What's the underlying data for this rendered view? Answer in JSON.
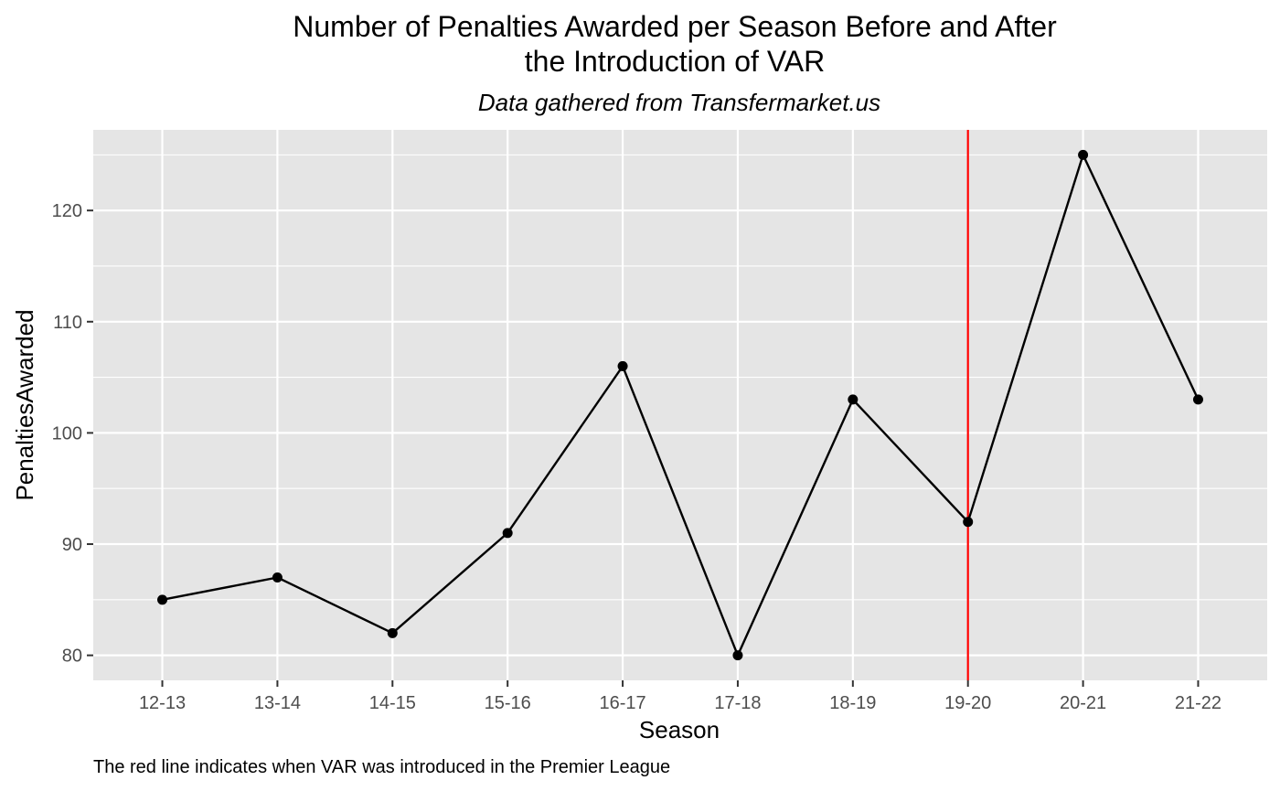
{
  "chart_data": {
    "type": "line",
    "title_line1": "Number of Penalties Awarded per Season Before and After",
    "title_line2": "the Introduction of VAR",
    "subtitle": "Data gathered from Transfermarket.us",
    "xlabel": "Season",
    "ylabel": "PenaltiesAwarded",
    "caption": "The red line indicates when VAR was introduced in the Premier League",
    "categories": [
      "12-13",
      "13-14",
      "14-15",
      "15-16",
      "16-17",
      "17-18",
      "18-19",
      "19-20",
      "20-21",
      "21-22"
    ],
    "values": [
      85,
      87,
      82,
      91,
      106,
      80,
      103,
      92,
      125,
      103
    ],
    "ylim": [
      77.75,
      127.25
    ],
    "yticks": [
      "80",
      "90",
      "100",
      "110",
      "120"
    ],
    "grid": true,
    "marker": {
      "category": "19-20",
      "color": "#ff0000"
    },
    "colors": {
      "panel": "#e5e5e5",
      "grid": "#ffffff",
      "line": "#000000"
    }
  }
}
